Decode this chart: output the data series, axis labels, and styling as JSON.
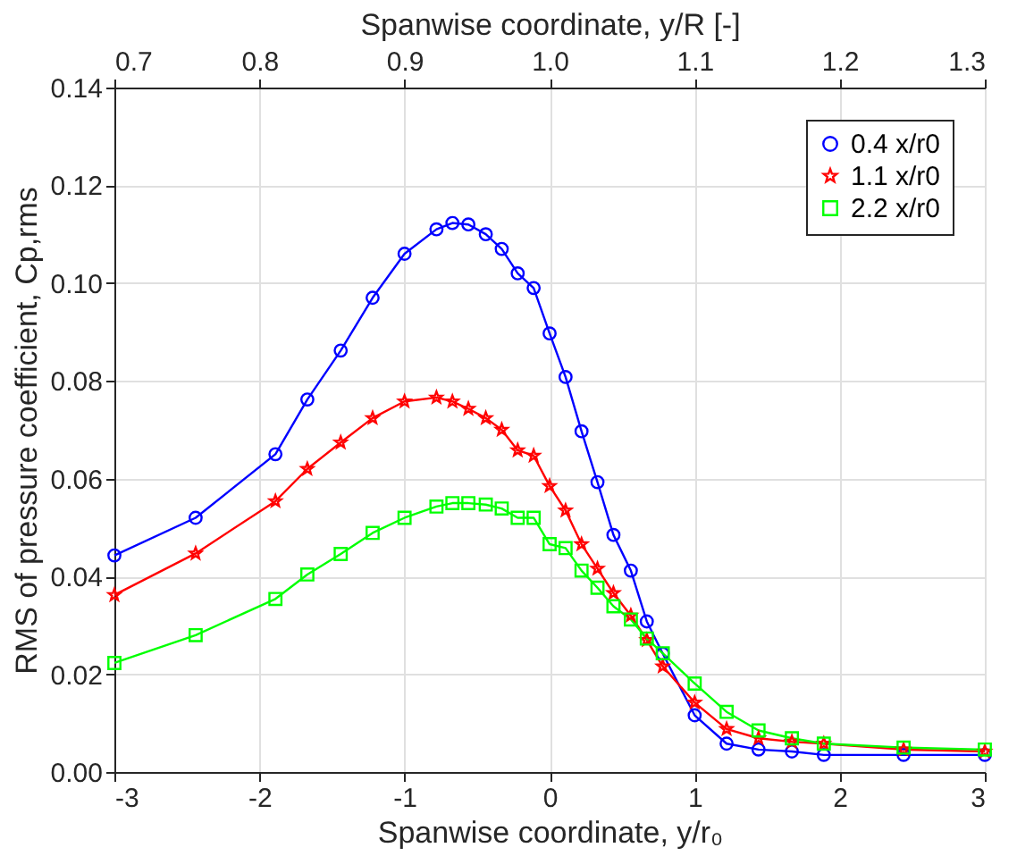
{
  "chart_data": {
    "type": "line",
    "xlabel": "Spanwise coordinate, y/r₀",
    "ylabel": "RMS of pressure coefficient, Cp,rms",
    "x2label": "Spanwise coordinate, y/R [-]",
    "x": [
      -3,
      -2.44,
      -1.89,
      -1.67,
      -1.44,
      -1.22,
      -1,
      -0.78,
      -0.67,
      -0.56,
      -0.44,
      -0.33,
      -0.22,
      -0.11,
      0,
      0.11,
      0.22,
      0.33,
      0.44,
      0.56,
      0.67,
      0.78,
      1,
      1.22,
      1.44,
      1.67,
      1.89,
      2.44,
      3
    ],
    "series": [
      {
        "name": "0.4 x/r0",
        "color": "#0000ff",
        "marker": "circle",
        "values": [
          0.0443,
          0.052,
          0.065,
          0.0762,
          0.0862,
          0.097,
          0.106,
          0.111,
          0.1123,
          0.112,
          0.11,
          0.107,
          0.102,
          0.099,
          0.0897,
          0.0808,
          0.0697,
          0.0593,
          0.0485,
          0.0412,
          0.0308,
          0.0242,
          0.0116,
          0.0058,
          0.0046,
          0.0042,
          0.0035,
          0.0035,
          0.0035
        ]
      },
      {
        "name": "1.1 x/r0",
        "color": "#ff0000",
        "marker": "star",
        "values": [
          0.0362,
          0.0447,
          0.0554,
          0.062,
          0.0674,
          0.0724,
          0.0758,
          0.0766,
          0.0758,
          0.0743,
          0.0724,
          0.07,
          0.0658,
          0.0647,
          0.0585,
          0.0535,
          0.0466,
          0.0416,
          0.0366,
          0.032,
          0.027,
          0.0216,
          0.0142,
          0.0088,
          0.0069,
          0.0062,
          0.0058,
          0.0046,
          0.0042
        ]
      },
      {
        "name": "2.2 x/r0",
        "color": "#00ff00",
        "marker": "square",
        "values": [
          0.0223,
          0.028,
          0.0354,
          0.0404,
          0.0446,
          0.0489,
          0.052,
          0.0543,
          0.055,
          0.055,
          0.0547,
          0.0539,
          0.052,
          0.052,
          0.0466,
          0.0458,
          0.0412,
          0.0377,
          0.0339,
          0.0312,
          0.0273,
          0.0243,
          0.0181,
          0.0123,
          0.0085,
          0.0069,
          0.0058,
          0.005,
          0.0046
        ]
      }
    ],
    "xlim": [
      -3,
      3
    ],
    "xticks": [
      -3,
      -2,
      -1,
      0,
      1,
      2,
      3
    ],
    "x2lim": [
      0.7,
      1.3
    ],
    "x2ticks": [
      0.7,
      0.8,
      0.9,
      {
        "value": 1.0,
        "label": "1.0"
      },
      1.1,
      1.2,
      1.3
    ],
    "ylim": [
      0,
      0.14
    ],
    "yticks": [
      {
        "value": 0,
        "label": "0.00"
      },
      {
        "value": 0.02,
        "label": "0.02"
      },
      {
        "value": 0.04,
        "label": "0.04"
      },
      {
        "value": 0.06,
        "label": "0.06"
      },
      {
        "value": 0.08,
        "label": "0.08"
      },
      {
        "value": 0.1,
        "label": "0.10"
      },
      {
        "value": 0.12,
        "label": "0.12"
      },
      {
        "value": 0.14,
        "label": "0.14"
      }
    ],
    "grid": true,
    "legend": "top right",
    "line_style": "solid"
  }
}
